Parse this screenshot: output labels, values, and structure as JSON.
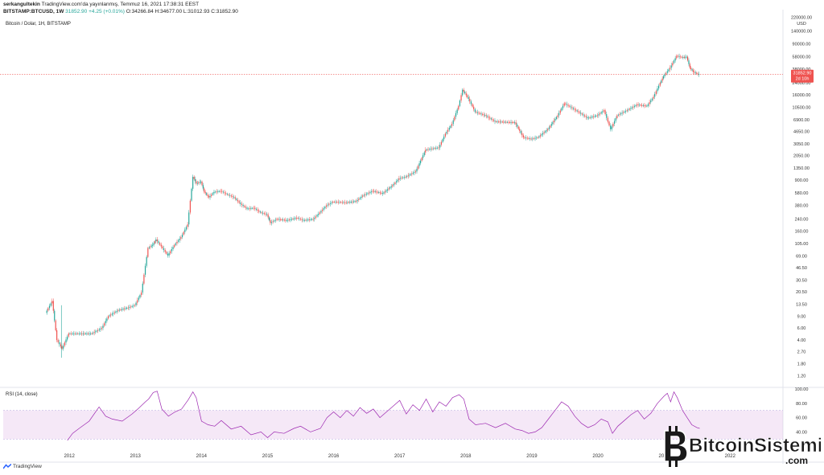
{
  "header": {
    "user": "serkangultekin",
    "published": "TradingView.com'da yayınlanmış, Temmuz 16, 2021 17:38:31 EEST",
    "symbol": "BITSTAMP:BTCUSD, 1W",
    "last": "31852.90",
    "change": "+4.25 (+0.01%)",
    "ohlc": "O:34266.84 H:34677.00 L:31012.93 C:31852.90"
  },
  "chart_data": [
    {
      "type": "candlestick",
      "title": "Bitcoin / Dolar, 1H, BITSTAMP",
      "scale": "log",
      "currency_label": "USD",
      "y_ticks": [
        "220000.00",
        "140000.00",
        "90000.00",
        "58000.00",
        "38000.00",
        "24000.00",
        "16000.00",
        "10500.00",
        "6900.00",
        "4650.00",
        "3050.00",
        "2050.00",
        "1350.00",
        "900.00",
        "580.00",
        "380.00",
        "240.00",
        "160.00",
        "105.00",
        "69.00",
        "46.50",
        "30.50",
        "20.50",
        "13.50",
        "9.00",
        "6.00",
        "4.00",
        "2.70",
        "1.80",
        "1.20"
      ],
      "x_ticks": [
        "2012",
        "2013",
        "2014",
        "2015",
        "2016",
        "2017",
        "2018",
        "2019",
        "2020",
        "2021",
        "2022"
      ],
      "last_price": 31852.9,
      "last_price_label": "31852.90",
      "countdown_label": "2d 10h",
      "x": [
        2011.65,
        2011.75,
        2011.82,
        2011.9,
        2012.0,
        2012.1,
        2012.2,
        2012.35,
        2012.5,
        2012.6,
        2012.75,
        2012.9,
        2013.0,
        2013.1,
        2013.2,
        2013.27,
        2013.32,
        2013.4,
        2013.5,
        2013.6,
        2013.7,
        2013.8,
        2013.88,
        2013.93,
        2014.0,
        2014.05,
        2014.12,
        2014.2,
        2014.3,
        2014.4,
        2014.5,
        2014.6,
        2014.7,
        2014.8,
        2014.9,
        2015.0,
        2015.05,
        2015.15,
        2015.3,
        2015.45,
        2015.55,
        2015.7,
        2015.8,
        2015.9,
        2016.0,
        2016.2,
        2016.35,
        2016.45,
        2016.6,
        2016.75,
        2016.9,
        2017.0,
        2017.1,
        2017.25,
        2017.4,
        2017.5,
        2017.6,
        2017.7,
        2017.8,
        2017.9,
        2017.96,
        2018.05,
        2018.15,
        2018.3,
        2018.45,
        2018.6,
        2018.75,
        2018.88,
        2019.0,
        2019.1,
        2019.25,
        2019.4,
        2019.5,
        2019.6,
        2019.75,
        2019.85,
        2020.0,
        2020.1,
        2020.2,
        2020.3,
        2020.45,
        2020.6,
        2020.75,
        2020.85,
        2020.95,
        2021.0,
        2021.1,
        2021.2,
        2021.28,
        2021.35,
        2021.4,
        2021.45,
        2021.5,
        2021.54
      ],
      "y": [
        10,
        15,
        4,
        3,
        5,
        5,
        5,
        5,
        6,
        9,
        11,
        12,
        13,
        20,
        90,
        100,
        120,
        95,
        70,
        100,
        130,
        200,
        1000,
        800,
        850,
        600,
        500,
        600,
        620,
        550,
        500,
        400,
        340,
        350,
        300,
        280,
        210,
        240,
        230,
        250,
        230,
        240,
        300,
        380,
        430,
        420,
        440,
        530,
        620,
        570,
        750,
        950,
        1000,
        1200,
        2500,
        2600,
        2700,
        4300,
        6000,
        11000,
        19000,
        14000,
        9000,
        8000,
        6500,
        6400,
        6300,
        3800,
        3600,
        3800,
        5000,
        8000,
        12000,
        10500,
        8500,
        7300,
        8000,
        9500,
        5000,
        8000,
        9500,
        11500,
        11000,
        15000,
        24000,
        30000,
        40000,
        60000,
        57000,
        58000,
        40000,
        35000,
        33000,
        31852.9
      ]
    },
    {
      "type": "line",
      "title": "RSI (14, close)",
      "y_ticks": [
        "100.00",
        "80.00",
        "60.00",
        "40.00"
      ],
      "band": [
        30,
        70
      ],
      "x": [
        2011.97,
        2012.05,
        2012.15,
        2012.3,
        2012.45,
        2012.55,
        2012.65,
        2012.8,
        2012.95,
        2013.05,
        2013.15,
        2013.2,
        2013.27,
        2013.33,
        2013.4,
        2013.5,
        2013.6,
        2013.7,
        2013.8,
        2013.87,
        2013.92,
        2014.0,
        2014.1,
        2014.2,
        2014.3,
        2014.45,
        2014.6,
        2014.75,
        2014.9,
        2015.0,
        2015.1,
        2015.25,
        2015.4,
        2015.5,
        2015.65,
        2015.8,
        2015.9,
        2016.0,
        2016.1,
        2016.2,
        2016.3,
        2016.4,
        2016.5,
        2016.6,
        2016.7,
        2016.8,
        2016.9,
        2017.0,
        2017.1,
        2017.2,
        2017.3,
        2017.4,
        2017.5,
        2017.6,
        2017.7,
        2017.8,
        2017.9,
        2017.97,
        2018.05,
        2018.15,
        2018.3,
        2018.45,
        2018.6,
        2018.75,
        2018.85,
        2018.95,
        2019.05,
        2019.15,
        2019.25,
        2019.35,
        2019.45,
        2019.55,
        2019.65,
        2019.75,
        2019.85,
        2019.95,
        2020.05,
        2020.15,
        2020.22,
        2020.3,
        2020.4,
        2020.5,
        2020.6,
        2020.7,
        2020.8,
        2020.9,
        2021.0,
        2021.05,
        2021.1,
        2021.15,
        2021.2,
        2021.28,
        2021.35,
        2021.42,
        2021.5,
        2021.54
      ],
      "y": [
        28,
        38,
        45,
        55,
        75,
        62,
        58,
        55,
        65,
        73,
        82,
        86,
        95,
        97,
        72,
        62,
        68,
        72,
        85,
        96,
        88,
        55,
        50,
        48,
        56,
        44,
        48,
        36,
        40,
        32,
        40,
        38,
        45,
        48,
        40,
        45,
        60,
        68,
        60,
        70,
        62,
        74,
        66,
        72,
        60,
        68,
        76,
        84,
        65,
        78,
        70,
        86,
        68,
        82,
        76,
        88,
        92,
        86,
        58,
        50,
        52,
        46,
        52,
        44,
        42,
        38,
        40,
        46,
        58,
        70,
        82,
        76,
        62,
        52,
        46,
        50,
        58,
        54,
        38,
        48,
        56,
        64,
        70,
        58,
        66,
        80,
        90,
        94,
        82,
        96,
        88,
        70,
        60,
        50,
        46,
        45
      ]
    }
  ],
  "watermark": {
    "part1": "Bitcoin",
    "part2": "Sistemi",
    "suffix": ".com"
  },
  "footer": {
    "brand": "TradingView"
  }
}
